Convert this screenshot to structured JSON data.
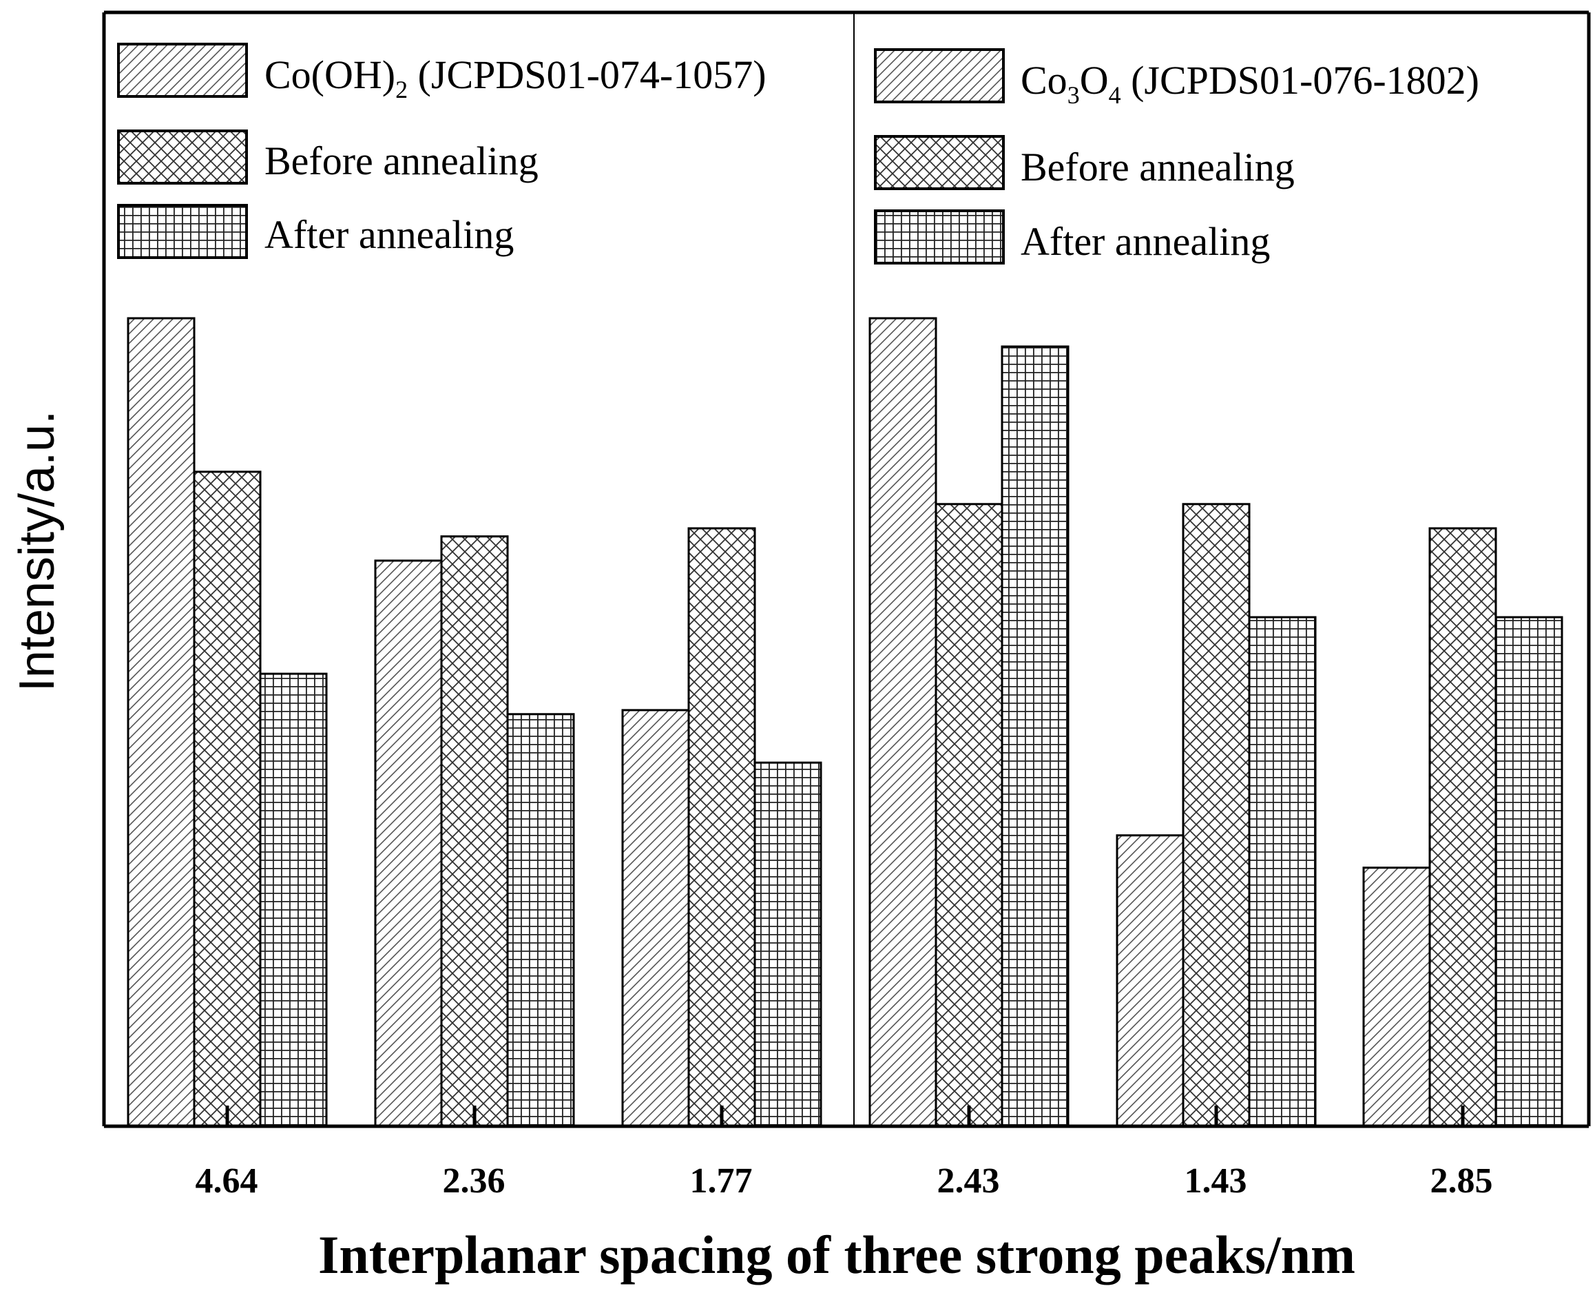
{
  "chart_data": {
    "type": "bar",
    "ylabel": "Intensity/a.u.",
    "xlabel": "Interplanar spacing of three strong peaks/nm",
    "ylim": [
      0,
      100
    ],
    "categories": [
      "4.64",
      "2.36",
      "1.77",
      "2.43",
      "1.43",
      "2.85"
    ],
    "panels": [
      {
        "legend": {
          "reference": {
            "prefix": "Co(OH)",
            "sub": "2",
            "suffix": " (JCPDS01-074-1057)"
          },
          "before": "Before annealing",
          "after": "After annealing"
        },
        "categories": [
          "4.64",
          "2.36",
          "1.77"
        ],
        "series": [
          {
            "name": "Co(OH)2 (JCPDS01-074-1057)",
            "values": [
              100,
              70,
              51.5
            ]
          },
          {
            "name": "Before annealing",
            "values": [
              81,
              73,
              74
            ]
          },
          {
            "name": "After annealing",
            "values": [
              56,
              51,
              45
            ]
          }
        ]
      },
      {
        "legend": {
          "reference": {
            "prefix": "Co",
            "sub": "3",
            "mid": "O",
            "sub2": "4",
            "suffix": " (JCPDS01-076-1802)"
          },
          "before": "Before annealing",
          "after": "After annealing"
        },
        "categories": [
          "2.43",
          "1.43",
          "2.85"
        ],
        "series": [
          {
            "name": "Co3O4 (JCPDS01-076-1802)",
            "values": [
              100,
              36,
              32
            ]
          },
          {
            "name": "Before annealing",
            "values": [
              77,
              77,
              74
            ]
          },
          {
            "name": "After annealing",
            "values": [
              96.5,
              63,
              63
            ]
          }
        ]
      }
    ]
  }
}
